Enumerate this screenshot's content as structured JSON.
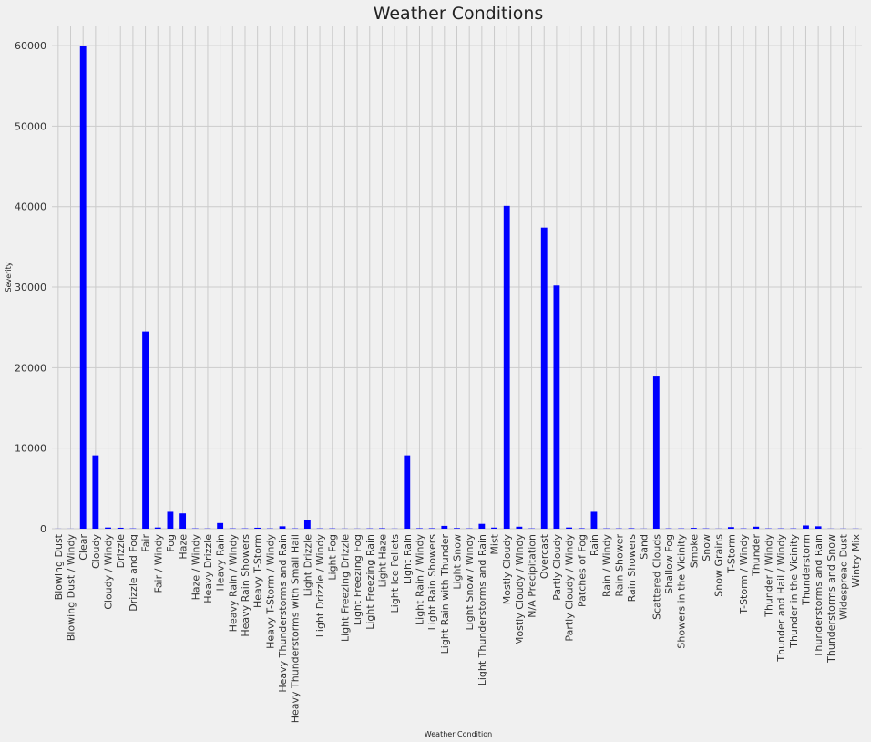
{
  "chart_data": {
    "type": "bar",
    "title": "Weather Conditions",
    "xlabel": "Weather Condition",
    "ylabel": "Severity",
    "ylim": [
      0,
      62500
    ],
    "yticks": [
      0,
      10000,
      20000,
      30000,
      40000,
      50000,
      60000
    ],
    "ytick_labels": [
      "0",
      "10000",
      "20000",
      "30000",
      "40000",
      "50000",
      "60000"
    ],
    "grid": true,
    "bar_color": "#0000ff",
    "categories": [
      "Blowing Dust",
      "Blowing Dust / Windy",
      "Clear",
      "Cloudy",
      "Cloudy / Windy",
      "Drizzle",
      "Drizzle and Fog",
      "Fair",
      "Fair / Windy",
      "Fog",
      "Haze",
      "Haze / Windy",
      "Heavy Drizzle",
      "Heavy Rain",
      "Heavy Rain / Windy",
      "Heavy Rain Showers",
      "Heavy T-Storm",
      "Heavy T-Storm / Windy",
      "Heavy Thunderstorms and Rain",
      "Heavy Thunderstorms with Small Hail",
      "Light Drizzle",
      "Light Drizzle / Windy",
      "Light Fog",
      "Light Freezing Drizzle",
      "Light Freezing Fog",
      "Light Freezing Rain",
      "Light Haze",
      "Light Ice Pellets",
      "Light Rain",
      "Light Rain / Windy",
      "Light Rain Showers",
      "Light Rain with Thunder",
      "Light Snow",
      "Light Snow / Windy",
      "Light Thunderstorms and Rain",
      "Mist",
      "Mostly Cloudy",
      "Mostly Cloudy / Windy",
      "N/A Precipitation",
      "Overcast",
      "Partly Cloudy",
      "Partly Cloudy / Windy",
      "Patches of Fog",
      "Rain",
      "Rain / Windy",
      "Rain Shower",
      "Rain Showers",
      "Sand",
      "Scattered Clouds",
      "Shallow Fog",
      "Showers in the Vicinity",
      "Smoke",
      "Snow",
      "Snow Grains",
      "T-Storm",
      "T-Storm / Windy",
      "Thunder",
      "Thunder / Windy",
      "Thunder and Hail / Windy",
      "Thunder in the Vicinity",
      "Thunderstorm",
      "Thunderstorms and Rain",
      "Thunderstorms and Snow",
      "Widespread Dust",
      "Wintry Mix"
    ],
    "values": [
      10,
      10,
      59900,
      9100,
      150,
      120,
      40,
      24500,
      150,
      2100,
      1900,
      40,
      30,
      700,
      40,
      40,
      120,
      40,
      300,
      40,
      1100,
      40,
      40,
      20,
      20,
      40,
      60,
      20,
      9100,
      60,
      60,
      350,
      80,
      40,
      600,
      140,
      40100,
      250,
      40,
      37400,
      30200,
      150,
      60,
      2100,
      40,
      40,
      60,
      20,
      18900,
      40,
      40,
      100,
      40,
      20,
      200,
      40,
      250,
      40,
      40,
      40,
      400,
      300,
      20,
      20,
      20
    ]
  }
}
